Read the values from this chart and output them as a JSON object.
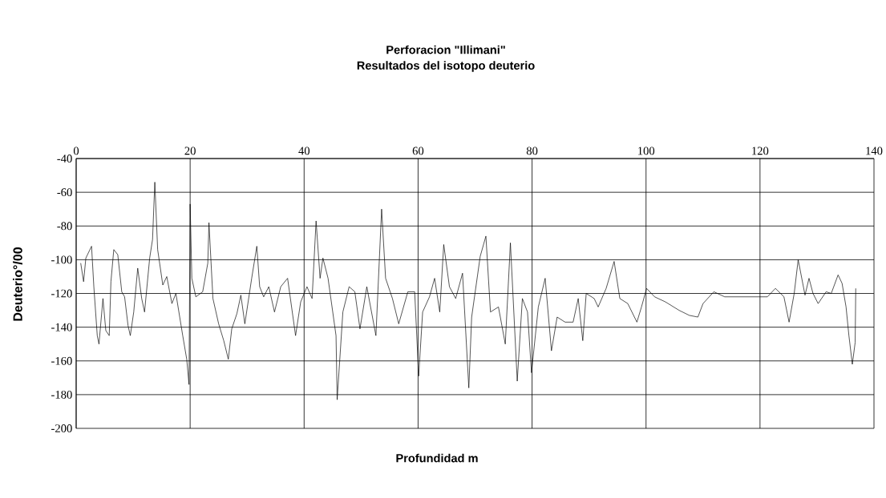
{
  "chart_data": {
    "type": "line",
    "title": "Perforacion \"Illimani\"",
    "subtitle": "Resultados del isotopo deuterio",
    "xlabel": "Profundidad m",
    "ylabel": "Deuterio°/00",
    "xlim": [
      0,
      140
    ],
    "xticks": [
      0,
      20,
      40,
      60,
      80,
      100,
      120,
      140
    ],
    "ylim": [
      -200,
      -40
    ],
    "yticks": [
      -200,
      -180,
      -160,
      -140,
      -120,
      -100,
      -80,
      -60,
      -40
    ],
    "grid": true,
    "marker": "none",
    "line_style": "solid",
    "series": [
      {
        "color": "#000000",
        "x": [
          0.8,
          1.3,
          1.7,
          2.7,
          3.1,
          3.7,
          4.0,
          4.7,
          5.2,
          5.8,
          6.1,
          6.6,
          7.3,
          8.0,
          8.5,
          9.1,
          9.5,
          10.1,
          10.8,
          11.5,
          12.0,
          12.9,
          13.4,
          13.8,
          14.3,
          15.2,
          15.9,
          16.8,
          17.5,
          18.7,
          19.4,
          19.8,
          20.0,
          20.3,
          21.0,
          22.2,
          23.1,
          23.3,
          24.0,
          25.0,
          25.9,
          26.7,
          27.3,
          28.2,
          28.9,
          29.6,
          30.8,
          31.7,
          32.2,
          32.9,
          33.8,
          34.8,
          35.9,
          37.1,
          38.5,
          39.4,
          40.5,
          41.4,
          42.1,
          42.8,
          43.3,
          44.2,
          45.6,
          45.8,
          46.8,
          47.9,
          48.9,
          49.8,
          51.0,
          52.6,
          53.6,
          54.3,
          55.5,
          56.6,
          58.2,
          59.4,
          60.1,
          60.8,
          62.0,
          62.9,
          63.8,
          64.5,
          65.5,
          66.6,
          67.8,
          68.9,
          69.4,
          70.9,
          71.9,
          72.7,
          74.1,
          75.3,
          76.2,
          77.4,
          78.3,
          79.2,
          79.9,
          81.1,
          82.3,
          83.4,
          84.4,
          85.8,
          87.2,
          88.1,
          88.9,
          89.5,
          90.9,
          91.6,
          93.0,
          94.4,
          95.4,
          96.8,
          98.4,
          99.2,
          100.1,
          101.5,
          103.4,
          105.8,
          107.6,
          109.1,
          110.0,
          111.9,
          113.8,
          116.6,
          119.4,
          121.3,
          122.7,
          124.2,
          125.1,
          126.0,
          126.7,
          127.9,
          128.6,
          129.3,
          130.2,
          131.6,
          132.5,
          133.7,
          134.4,
          135.1,
          135.6,
          136.2,
          136.7,
          136.8
        ],
        "values": [
          -102,
          -113,
          -99,
          -92,
          -116,
          -145,
          -150,
          -123,
          -142,
          -145,
          -113,
          -94,
          -97,
          -119,
          -122,
          -139,
          -145,
          -131,
          -105,
          -123,
          -131,
          -99,
          -88,
          -54,
          -94,
          -115,
          -110,
          -126,
          -120,
          -145,
          -159,
          -174,
          -67,
          -111,
          -122,
          -119,
          -102,
          -78,
          -123,
          -138,
          -148,
          -159,
          -141,
          -132,
          -121,
          -138,
          -111,
          -92,
          -116,
          -122,
          -116,
          -131,
          -116,
          -111,
          -145,
          -125,
          -116,
          -123,
          -77,
          -111,
          -99,
          -111,
          -145,
          -183,
          -131,
          -116,
          -119,
          -141,
          -116,
          -145,
          -70,
          -111,
          -123,
          -138,
          -119,
          -119,
          -169,
          -131,
          -122,
          -111,
          -131,
          -91,
          -116,
          -123,
          -108,
          -176,
          -134,
          -98,
          -86,
          -131,
          -128,
          -150,
          -90,
          -172,
          -123,
          -131,
          -167,
          -128,
          -111,
          -154,
          -134,
          -137,
          -137,
          -123,
          -148,
          -120,
          -123,
          -128,
          -117,
          -101,
          -123,
          -126,
          -137,
          -128,
          -117,
          -122,
          -125,
          -130,
          -133,
          -134,
          -126,
          -119,
          -122,
          -122,
          -122,
          -122,
          -117,
          -122,
          -137,
          -120,
          -100,
          -121,
          -111,
          -120,
          -126,
          -119,
          -120,
          -109,
          -114,
          -128,
          -145,
          -162,
          -149,
          -117
        ]
      }
    ]
  }
}
